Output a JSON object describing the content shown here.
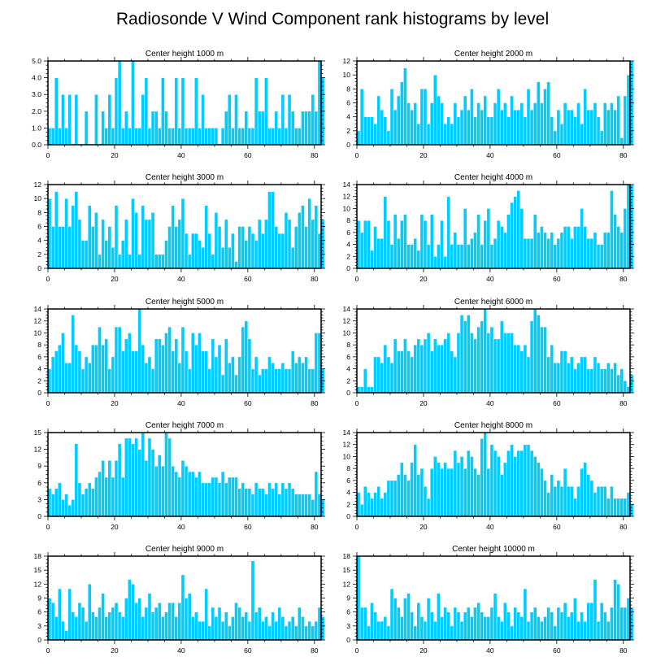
{
  "figure": {
    "title": "Radiosonde V Wind Component rank histograms by level",
    "bar_color": "#00CCFF"
  },
  "chart_data": [
    {
      "type": "bar",
      "title": "Center height 1000 m",
      "xlim": [
        0,
        82
      ],
      "ylim": [
        0,
        5
      ],
      "xticks": [
        0,
        20,
        40,
        60,
        80
      ],
      "yticks": [
        0,
        1,
        2,
        3,
        4,
        5
      ],
      "ytick_labels": [
        "0.0",
        "1.0",
        "2.0",
        "3.0",
        "4.0",
        "5.0"
      ],
      "values": [
        1,
        1,
        4,
        1,
        3,
        1,
        3,
        0,
        3,
        0,
        0,
        2,
        0,
        0,
        3,
        0,
        2,
        1,
        3,
        1,
        4,
        5,
        1,
        2,
        1,
        5,
        1,
        1,
        3,
        4,
        1,
        2,
        2,
        1,
        4,
        2,
        1,
        1,
        4,
        1,
        4,
        1,
        1,
        1,
        4,
        1,
        3,
        1,
        1,
        1,
        1,
        0,
        1,
        2,
        3,
        1,
        3,
        1,
        1,
        2,
        1,
        1,
        4,
        2,
        2,
        4,
        1,
        1,
        2,
        1,
        3,
        1,
        3,
        2,
        1,
        1,
        2,
        2,
        2,
        3,
        2,
        5,
        4
      ]
    },
    {
      "type": "bar",
      "title": "Center height 2000 m",
      "xlim": [
        0,
        82
      ],
      "ylim": [
        0,
        12
      ],
      "xticks": [
        0,
        20,
        40,
        60,
        80
      ],
      "yticks": [
        0,
        2,
        4,
        6,
        8,
        10,
        12
      ],
      "ytick_labels": [
        "0",
        "2",
        "4",
        "6",
        "8",
        "10",
        "12"
      ],
      "values": [
        2,
        8,
        4,
        4,
        4,
        3,
        7,
        5,
        4,
        2,
        8,
        5,
        7,
        9,
        11,
        6,
        5,
        6,
        3,
        8,
        8,
        3,
        6,
        10,
        7,
        6,
        3,
        4,
        3,
        6,
        4,
        5,
        7,
        5,
        8,
        4,
        6,
        5,
        7,
        4,
        4,
        6,
        8,
        5,
        6,
        4,
        7,
        5,
        5,
        6,
        4,
        8,
        5,
        6,
        9,
        6,
        8,
        9,
        4,
        2,
        5,
        3,
        6,
        5,
        5,
        4,
        6,
        3,
        8,
        5,
        5,
        6,
        4,
        2,
        6,
        5,
        6,
        5,
        7,
        1,
        7,
        10,
        12
      ]
    },
    {
      "type": "bar",
      "title": "Center height 3000 m",
      "xlim": [
        0,
        82
      ],
      "ylim": [
        0,
        12
      ],
      "xticks": [
        0,
        20,
        40,
        60,
        80
      ],
      "yticks": [
        0,
        2,
        4,
        6,
        8,
        10,
        12
      ],
      "ytick_labels": [
        "0",
        "2",
        "4",
        "6",
        "8",
        "10",
        "12"
      ],
      "values": [
        10,
        6,
        11,
        6,
        6,
        10,
        6,
        9,
        11,
        7,
        4,
        4,
        9,
        6,
        8,
        2,
        7,
        4,
        6,
        3,
        9,
        2,
        4,
        7,
        2,
        10,
        8,
        2,
        9,
        7,
        7,
        8,
        2,
        2,
        2,
        4,
        6,
        9,
        6,
        7,
        10,
        5,
        2,
        5,
        5,
        4,
        3,
        9,
        5,
        2,
        8,
        6,
        3,
        7,
        3,
        5,
        1,
        6,
        6,
        4,
        6,
        5,
        4,
        7,
        5,
        7,
        11,
        11,
        6,
        5,
        5,
        8,
        7,
        3,
        6,
        8,
        9,
        6,
        10,
        7,
        9,
        5,
        7
      ]
    },
    {
      "type": "bar",
      "title": "Center height 4000 m",
      "xlim": [
        0,
        82
      ],
      "ylim": [
        0,
        14
      ],
      "xticks": [
        0,
        20,
        40,
        60,
        80
      ],
      "yticks": [
        0,
        2,
        4,
        6,
        8,
        10,
        12,
        14
      ],
      "ytick_labels": [
        "0",
        "2",
        "4",
        "6",
        "8",
        "10",
        "12",
        "14"
      ],
      "values": [
        8,
        6,
        8,
        8,
        3,
        7,
        5,
        5,
        12,
        8,
        4,
        9,
        5,
        8,
        9,
        4,
        4,
        5,
        3,
        9,
        8,
        4,
        9,
        2,
        4,
        8,
        2,
        12,
        4,
        6,
        4,
        4,
        10,
        4,
        5,
        6,
        9,
        4,
        8,
        10,
        4,
        5,
        8,
        7,
        6,
        9,
        11,
        12,
        13,
        10,
        5,
        5,
        5,
        9,
        6,
        7,
        6,
        5,
        6,
        4,
        5,
        6,
        7,
        7,
        5,
        7,
        7,
        10,
        7,
        5,
        5,
        6,
        4,
        4,
        6,
        6,
        13,
        9,
        7,
        6,
        10,
        14,
        14
      ]
    },
    {
      "type": "bar",
      "title": "Center height 5000 m",
      "xlim": [
        0,
        82
      ],
      "ylim": [
        0,
        14
      ],
      "xticks": [
        0,
        20,
        40,
        60,
        80
      ],
      "yticks": [
        0,
        2,
        4,
        6,
        8,
        10,
        12,
        14
      ],
      "ytick_labels": [
        "0",
        "2",
        "4",
        "6",
        "8",
        "10",
        "12",
        "14"
      ],
      "values": [
        4,
        6,
        7,
        8,
        10,
        5,
        5,
        13,
        8,
        7,
        4,
        6,
        5,
        8,
        8,
        11,
        8,
        9,
        4,
        6,
        11,
        11,
        7,
        9,
        10,
        7,
        7,
        14,
        8,
        5,
        6,
        4,
        9,
        9,
        8,
        10,
        11,
        7,
        9,
        5,
        11,
        7,
        4,
        10,
        8,
        10,
        7,
        7,
        4,
        9,
        6,
        8,
        3,
        9,
        5,
        6,
        3,
        6,
        11,
        12,
        9,
        4,
        6,
        3,
        4,
        4,
        6,
        5,
        4,
        4,
        5,
        4,
        4,
        7,
        5,
        6,
        5,
        6,
        4,
        4,
        10,
        10,
        4
      ]
    },
    {
      "type": "bar",
      "title": "Center height 6000 m",
      "xlim": [
        0,
        82
      ],
      "ylim": [
        0,
        14
      ],
      "xticks": [
        0,
        20,
        40,
        60,
        80
      ],
      "yticks": [
        0,
        2,
        4,
        6,
        8,
        10,
        12,
        14
      ],
      "ytick_labels": [
        "0",
        "2",
        "4",
        "6",
        "8",
        "10",
        "12",
        "14"
      ],
      "values": [
        1,
        1,
        4,
        1,
        1,
        6,
        6,
        5,
        8,
        6,
        5,
        9,
        7,
        7,
        9,
        7,
        6,
        8,
        9,
        8,
        9,
        10,
        7,
        9,
        8,
        8,
        9,
        10,
        7,
        6,
        10,
        13,
        12,
        13,
        10,
        9,
        11,
        12,
        14,
        10,
        11,
        9,
        9,
        12,
        10,
        10,
        10,
        8,
        8,
        7,
        8,
        6,
        12,
        14,
        13,
        11,
        11,
        6,
        8,
        5,
        5,
        7,
        7,
        5,
        6,
        4,
        5,
        6,
        6,
        4,
        4,
        6,
        5,
        4,
        4,
        5,
        4,
        5,
        3,
        4,
        2,
        1,
        3
      ]
    },
    {
      "type": "bar",
      "title": "Center height 7000 m",
      "xlim": [
        0,
        82
      ],
      "ylim": [
        0,
        15
      ],
      "xticks": [
        0,
        20,
        40,
        60,
        80
      ],
      "yticks": [
        0,
        3,
        6,
        9,
        12,
        15
      ],
      "ytick_labels": [
        "0",
        "3",
        "6",
        "9",
        "12",
        "15"
      ],
      "values": [
        5,
        4,
        5,
        6,
        3,
        4,
        2,
        3,
        13,
        6,
        4,
        5,
        6,
        5,
        7,
        8,
        10,
        7,
        10,
        7,
        10,
        13,
        7,
        14,
        14,
        13,
        14,
        12,
        15,
        10,
        14,
        12,
        9,
        11,
        9,
        15,
        14,
        9,
        8,
        7,
        10,
        9,
        8,
        8,
        7,
        8,
        6,
        6,
        6,
        7,
        7,
        6,
        8,
        6,
        7,
        7,
        7,
        5,
        6,
        5,
        5,
        4,
        6,
        5,
        5,
        4,
        6,
        5,
        6,
        4,
        6,
        5,
        6,
        5,
        4,
        4,
        4,
        4,
        4,
        3,
        8,
        4,
        3
      ]
    },
    {
      "type": "bar",
      "title": "Center height 8000 m",
      "xlim": [
        0,
        82
      ],
      "ylim": [
        0,
        14
      ],
      "xticks": [
        0,
        20,
        40,
        60,
        80
      ],
      "yticks": [
        0,
        2,
        4,
        6,
        8,
        10,
        12,
        14
      ],
      "ytick_labels": [
        "0",
        "2",
        "4",
        "6",
        "8",
        "10",
        "12",
        "14"
      ],
      "values": [
        4,
        2,
        5,
        4,
        3,
        4,
        5,
        3,
        4,
        6,
        6,
        6,
        7,
        9,
        7,
        6,
        9,
        12,
        7,
        8,
        5,
        3,
        8,
        10,
        9,
        8,
        9,
        8,
        8,
        11,
        9,
        10,
        8,
        11,
        10,
        8,
        7,
        13,
        14,
        8,
        12,
        11,
        10,
        7,
        9,
        11,
        12,
        10,
        11,
        11,
        12,
        12,
        11,
        10,
        9,
        8,
        6,
        4,
        7,
        5,
        6,
        5,
        8,
        5,
        5,
        3,
        5,
        8,
        9,
        7,
        6,
        4,
        5,
        5,
        5,
        3,
        5,
        3,
        3,
        3,
        3,
        4,
        2
      ]
    },
    {
      "type": "bar",
      "title": "Center height 9000 m",
      "xlim": [
        0,
        82
      ],
      "ylim": [
        0,
        18
      ],
      "xticks": [
        0,
        20,
        40,
        60,
        80
      ],
      "yticks": [
        0,
        3,
        6,
        9,
        12,
        15,
        18
      ],
      "ytick_labels": [
        "0",
        "3",
        "6",
        "9",
        "12",
        "15",
        "18"
      ],
      "values": [
        9,
        8,
        5,
        11,
        4,
        2,
        11,
        6,
        5,
        8,
        7,
        4,
        12,
        6,
        5,
        7,
        10,
        5,
        6,
        7,
        8,
        6,
        5,
        9,
        13,
        12,
        8,
        9,
        5,
        7,
        10,
        6,
        7,
        8,
        5,
        6,
        8,
        8,
        5,
        8,
        14,
        9,
        10,
        5,
        6,
        4,
        4,
        11,
        3,
        7,
        5,
        7,
        4,
        6,
        3,
        5,
        8,
        7,
        5,
        6,
        4,
        17,
        6,
        7,
        4,
        5,
        3,
        6,
        4,
        7,
        5,
        3,
        4,
        5,
        3,
        7,
        5,
        3,
        4,
        3,
        4,
        7,
        5
      ]
    },
    {
      "type": "bar",
      "title": "Center height 10000 m",
      "xlim": [
        0,
        82
      ],
      "ylim": [
        0,
        18
      ],
      "xticks": [
        0,
        20,
        40,
        60,
        80
      ],
      "yticks": [
        0,
        3,
        6,
        9,
        12,
        15,
        18
      ],
      "ytick_labels": [
        "0",
        "3",
        "6",
        "9",
        "12",
        "15",
        "18"
      ],
      "values": [
        18,
        7,
        7,
        3,
        8,
        6,
        4,
        4,
        5,
        3,
        11,
        9,
        7,
        5,
        9,
        10,
        6,
        3,
        8,
        5,
        4,
        9,
        6,
        4,
        10,
        5,
        7,
        6,
        3,
        7,
        6,
        4,
        6,
        7,
        5,
        7,
        8,
        6,
        5,
        5,
        7,
        10,
        5,
        4,
        8,
        6,
        3,
        7,
        6,
        5,
        11,
        4,
        6,
        7,
        5,
        4,
        5,
        7,
        6,
        3,
        7,
        6,
        8,
        5,
        6,
        9,
        4,
        6,
        4,
        8,
        8,
        13,
        4,
        8,
        6,
        4,
        7,
        13,
        12,
        7,
        7,
        9,
        7
      ]
    }
  ]
}
